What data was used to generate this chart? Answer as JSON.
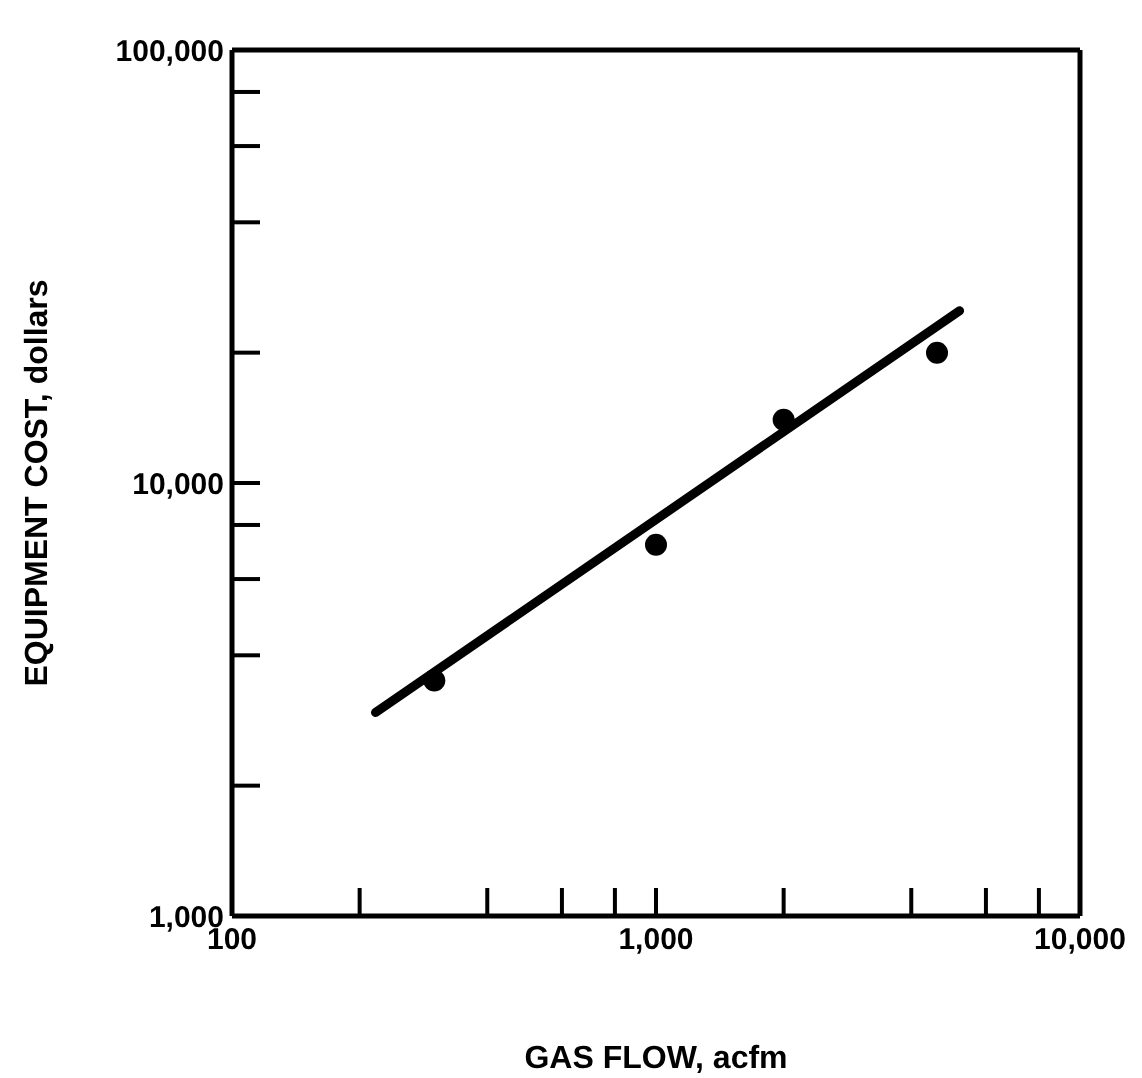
{
  "chart_data": {
    "type": "scatter",
    "xlabel": "GAS FLOW, acfm",
    "ylabel": "EQUIPMENT COST, dollars",
    "log": "xy",
    "grid": false,
    "xlim": [
      100,
      10000
    ],
    "ylim": [
      1000,
      100000
    ],
    "xticks": [
      100,
      {
        "value": 200,
        "label": null
      },
      {
        "value": 400,
        "label": null
      },
      {
        "value": 600,
        "label": null
      },
      {
        "value": 800,
        "label": null
      },
      {
        "value": 1000,
        "label": "1,000"
      },
      {
        "value": 2000,
        "label": null
      },
      {
        "value": 4000,
        "label": null
      },
      {
        "value": 6000,
        "label": null
      },
      {
        "value": 8000,
        "label": null
      },
      {
        "value": 10000,
        "label": "10,000"
      }
    ],
    "yticks": [
      {
        "value": 1000,
        "label": "1,000"
      },
      {
        "value": 2000,
        "label": null
      },
      {
        "value": 4000,
        "label": null
      },
      {
        "value": 6000,
        "label": null
      },
      {
        "value": 8000,
        "label": null
      },
      {
        "value": 10000,
        "label": "10,000"
      },
      {
        "value": 20000,
        "label": null
      },
      {
        "value": 40000,
        "label": null
      },
      {
        "value": 60000,
        "label": null
      },
      {
        "value": 80000,
        "label": null
      },
      {
        "value": 100000,
        "label": "100,000"
      }
    ],
    "series": [
      {
        "type": "scatter",
        "color": "#000000",
        "x": [
          300,
          1000,
          2000,
          4600
        ],
        "values": [
          3500,
          7200,
          14000,
          20000
        ]
      },
      {
        "type": "line",
        "color": "#000000",
        "x": [
          218,
          5200
        ],
        "values": [
          2950,
          25000
        ]
      }
    ]
  }
}
